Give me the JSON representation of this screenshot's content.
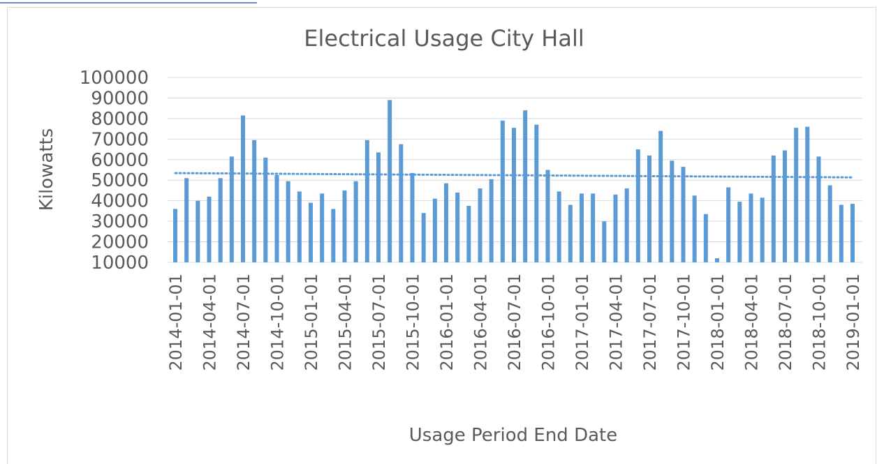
{
  "chart_data": {
    "type": "bar",
    "title": "Electrical Usage City Hall",
    "x_label": "Usage Period End Date",
    "y_label": "Kilowatts",
    "categories": [
      "2014-01-01",
      null,
      null,
      "2014-04-01",
      null,
      null,
      "2014-07-01",
      null,
      null,
      "2014-10-01",
      null,
      null,
      "2015-01-01",
      null,
      null,
      "2015-04-01",
      null,
      null,
      "2015-07-01",
      null,
      null,
      "2015-10-01",
      null,
      null,
      "2016-01-01",
      null,
      null,
      "2016-04-01",
      null,
      null,
      "2016-07-01",
      null,
      null,
      "2016-10-01",
      null,
      null,
      "2017-01-01",
      null,
      null,
      "2017-04-01",
      null,
      null,
      "2017-07-01",
      null,
      null,
      "2017-10-01",
      null,
      null,
      "2018-01-01",
      null,
      null,
      "2018-04-01",
      null,
      null,
      "2018-07-01",
      null,
      null,
      "2018-10-01",
      null,
      null,
      "2019-01-01"
    ],
    "values": [
      36000,
      51000,
      40000,
      42000,
      51000,
      61500,
      81500,
      69500,
      61000,
      52500,
      49500,
      44500,
      39000,
      43500,
      36000,
      45000,
      49500,
      69500,
      63500,
      89000,
      67500,
      53500,
      34000,
      41000,
      48500,
      44000,
      37500,
      46000,
      50500,
      79000,
      75500,
      84000,
      77000,
      55000,
      44500,
      38000,
      43500,
      43500,
      30000,
      43000,
      46000,
      65000,
      62000,
      74000,
      59500,
      56500,
      42500,
      33500,
      12000,
      46500,
      39500,
      43500,
      41500,
      62000,
      64500,
      75500,
      76000,
      61500,
      47500,
      38000,
      38500
    ],
    "color": "#5b9bd5",
    "ylim": [
      10000,
      100000
    ],
    "yticks": [
      10000,
      20000,
      30000,
      40000,
      50000,
      60000,
      70000,
      80000,
      90000,
      100000
    ],
    "grid": true,
    "trendline": "linear"
  }
}
